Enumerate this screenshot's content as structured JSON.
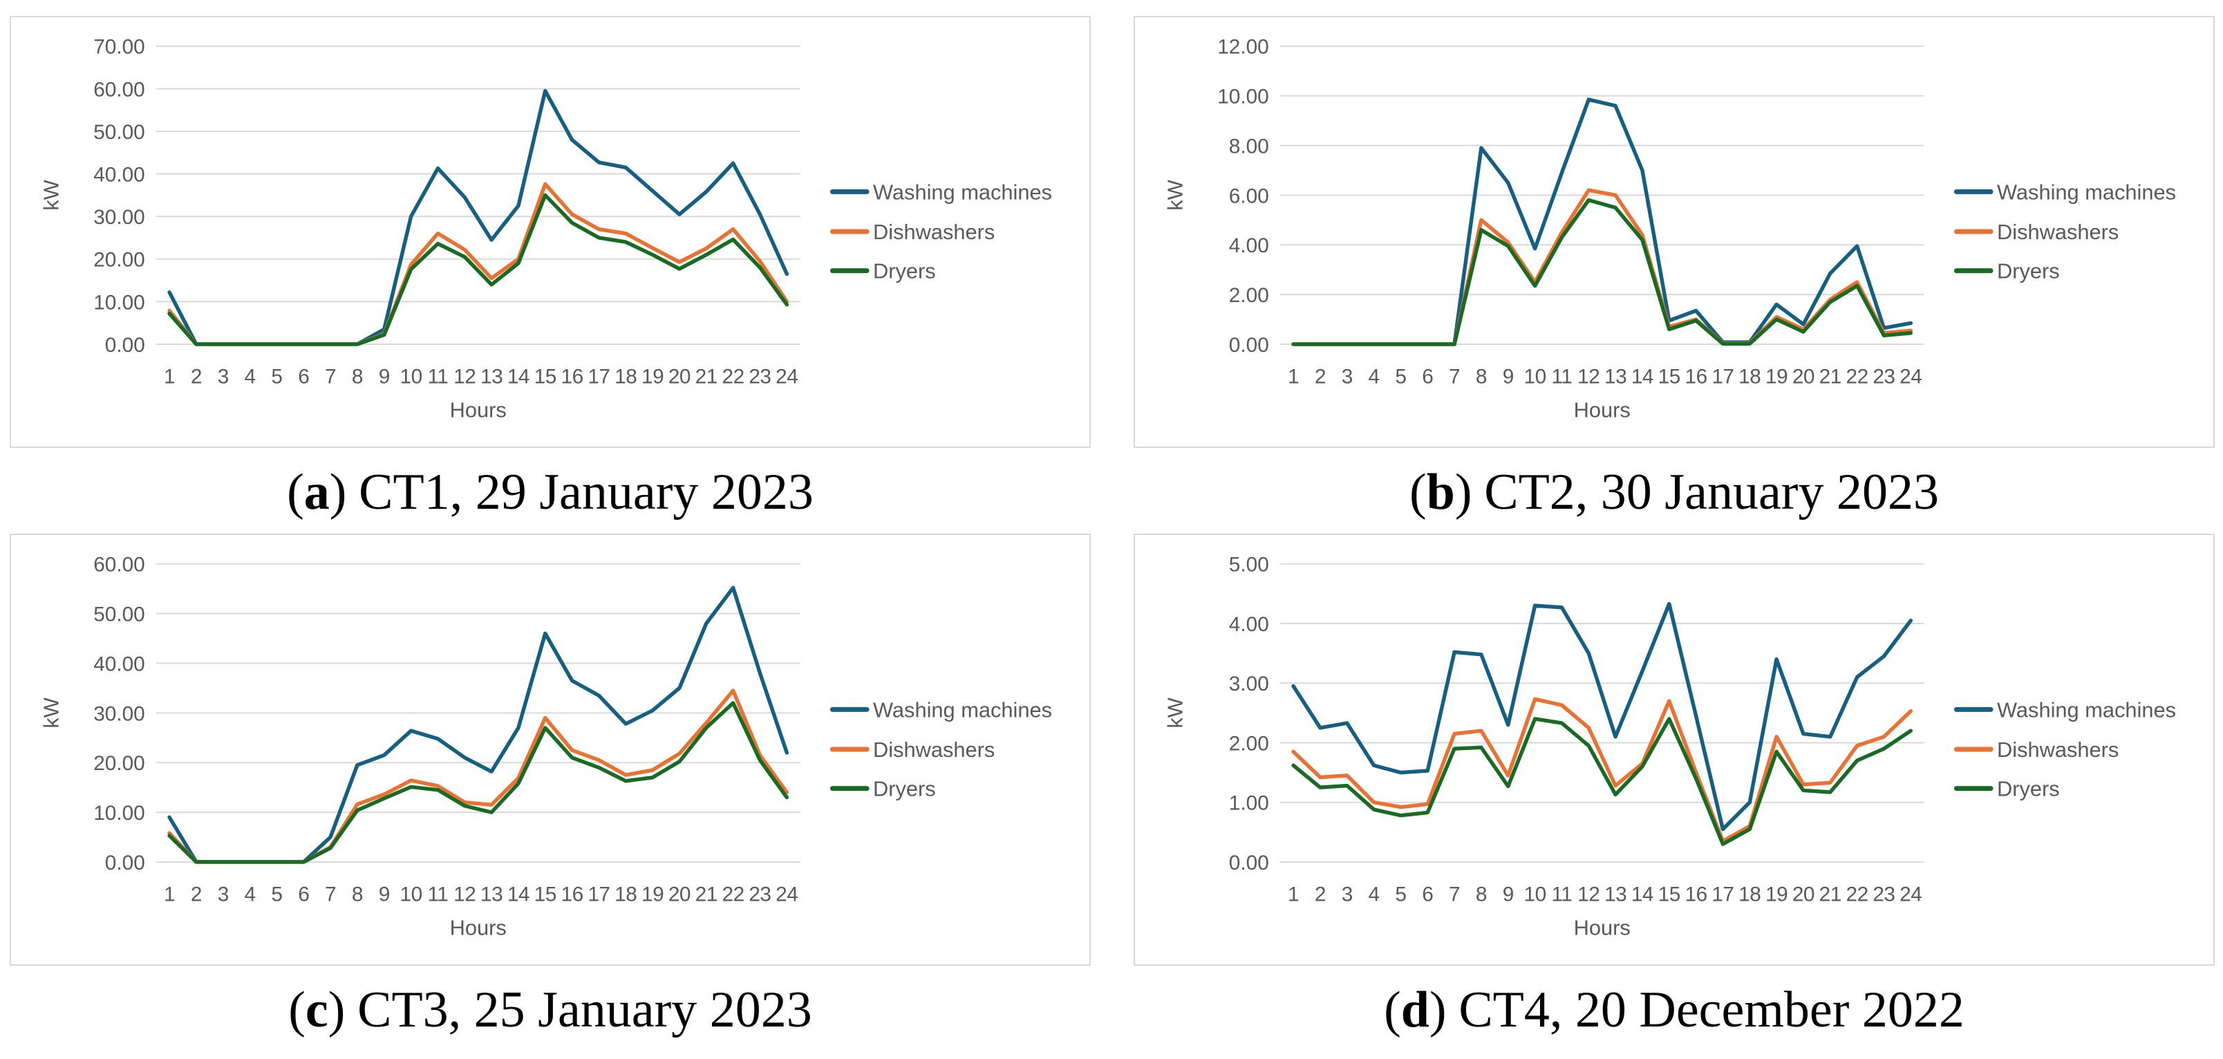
{
  "series_names": [
    "Washing machines",
    "Dishwashers",
    "Dryers"
  ],
  "colors": {
    "washing_machines": "#156082",
    "dishwashers": "#E97132",
    "dryers": "#196B24",
    "gridline": "#D9D9D9",
    "box_border": "#D9D9D9",
    "axis_text": "#595959",
    "caption_text": "#000000"
  },
  "chart_data": [
    {
      "id": "a",
      "type": "line",
      "caption": {
        "open": "(",
        "letter": "a",
        "close": ")",
        "text": "CT1, 29 January 2023"
      },
      "ylabel": "kW",
      "xlabel": "Hours",
      "ylim": [
        0,
        70
      ],
      "ytick_step": 10,
      "ytick_format_decimals": 2,
      "grid": true,
      "legend_position": "right",
      "categories": [
        1,
        2,
        3,
        4,
        5,
        6,
        7,
        8,
        9,
        10,
        11,
        12,
        13,
        14,
        15,
        16,
        17,
        18,
        19,
        20,
        21,
        22,
        23,
        24
      ],
      "series": [
        {
          "name": "Washing machines",
          "color": "#156082",
          "values": [
            12.2,
            0,
            0,
            0,
            0,
            0,
            0,
            0,
            3.5,
            30,
            41.3,
            34.5,
            24.5,
            32.5,
            59.5,
            48,
            42.7,
            41.5,
            36,
            30.5,
            35.8,
            42.5,
            30.5,
            16.5
          ]
        },
        {
          "name": "Dishwashers",
          "color": "#E97132",
          "values": [
            7.9,
            0,
            0,
            0,
            0,
            0,
            0,
            0,
            2.4,
            18.7,
            26,
            22.2,
            15.5,
            20,
            37.6,
            30.5,
            27,
            26,
            22.6,
            19.3,
            22.5,
            27,
            19.5,
            10
          ]
        },
        {
          "name": "Dryers",
          "color": "#196B24",
          "values": [
            7.2,
            0,
            0,
            0,
            0,
            0,
            0,
            0,
            2.2,
            17.6,
            23.6,
            20.5,
            14,
            19,
            35,
            28.5,
            25,
            24,
            21,
            17.7,
            21,
            24.6,
            18,
            9.3
          ]
        }
      ]
    },
    {
      "id": "b",
      "type": "line",
      "caption": {
        "open": "(",
        "letter": "b",
        "close": ")",
        "text": "CT2, 30 January 2023"
      },
      "ylabel": "kW",
      "xlabel": "Hours",
      "ylim": [
        0,
        12
      ],
      "ytick_step": 2,
      "ytick_format_decimals": 2,
      "grid": true,
      "legend_position": "right",
      "categories": [
        1,
        2,
        3,
        4,
        5,
        6,
        7,
        8,
        9,
        10,
        11,
        12,
        13,
        14,
        15,
        16,
        17,
        18,
        19,
        20,
        21,
        22,
        23,
        24
      ],
      "series": [
        {
          "name": "Washing machines",
          "color": "#156082",
          "values": [
            0,
            0,
            0,
            0,
            0,
            0,
            0,
            7.9,
            6.5,
            3.85,
            6.9,
            9.85,
            9.6,
            7.0,
            0.95,
            1.35,
            0.08,
            0.08,
            1.6,
            0.8,
            2.85,
            3.95,
            0.65,
            0.85
          ]
        },
        {
          "name": "Dishwashers",
          "color": "#E97132",
          "values": [
            0,
            0,
            0,
            0,
            0,
            0,
            0,
            5.0,
            4.1,
            2.5,
            4.5,
            6.2,
            6.0,
            4.4,
            0.7,
            1.0,
            0.04,
            0.04,
            1.1,
            0.6,
            1.8,
            2.5,
            0.45,
            0.55
          ]
        },
        {
          "name": "Dryers",
          "color": "#196B24",
          "values": [
            0,
            0,
            0,
            0,
            0,
            0,
            0,
            4.6,
            3.95,
            2.35,
            4.3,
            5.8,
            5.5,
            4.2,
            0.6,
            0.95,
            0.02,
            0.02,
            1.0,
            0.5,
            1.7,
            2.35,
            0.35,
            0.45
          ]
        }
      ]
    },
    {
      "id": "c",
      "type": "line",
      "caption": {
        "open": "(",
        "letter": "c",
        "close": ")",
        "text": "CT3, 25 January 2023"
      },
      "ylabel": "kW",
      "xlabel": "Hours",
      "ylim": [
        0,
        60
      ],
      "ytick_step": 10,
      "ytick_format_decimals": 2,
      "grid": true,
      "legend_position": "right",
      "categories": [
        1,
        2,
        3,
        4,
        5,
        6,
        7,
        8,
        9,
        10,
        11,
        12,
        13,
        14,
        15,
        16,
        17,
        18,
        19,
        20,
        21,
        22,
        23,
        24
      ],
      "series": [
        {
          "name": "Washing machines",
          "color": "#156082",
          "values": [
            9,
            0,
            0,
            0,
            0,
            0,
            5,
            19.5,
            21.5,
            26.4,
            24.8,
            21,
            18.2,
            27,
            46,
            36.5,
            33.5,
            27.8,
            30.5,
            35,
            48,
            55.2,
            38,
            22
          ]
        },
        {
          "name": "Dishwashers",
          "color": "#E97132",
          "values": [
            5.8,
            0,
            0,
            0,
            0,
            0,
            3,
            11.6,
            13.6,
            16.4,
            15.3,
            12,
            11.5,
            16.9,
            29,
            22.5,
            20.5,
            17.5,
            18.5,
            21.8,
            28,
            34.5,
            21.5,
            14
          ]
        },
        {
          "name": "Dryers",
          "color": "#196B24",
          "values": [
            5.3,
            0,
            0,
            0,
            0,
            0,
            2.8,
            10.4,
            12.8,
            15.1,
            14.5,
            11.3,
            10,
            15.8,
            27,
            21,
            19,
            16.3,
            17,
            20.2,
            27,
            32,
            20.5,
            13
          ]
        }
      ]
    },
    {
      "id": "d",
      "type": "line",
      "caption": {
        "open": "(",
        "letter": "d",
        "close": ")",
        "text": "CT4, 20 December 2022"
      },
      "ylabel": "kW",
      "xlabel": "Hours",
      "ylim": [
        0,
        5
      ],
      "ytick_step": 1,
      "ytick_format_decimals": 2,
      "grid": true,
      "legend_position": "right",
      "categories": [
        1,
        2,
        3,
        4,
        5,
        6,
        7,
        8,
        9,
        10,
        11,
        12,
        13,
        14,
        15,
        16,
        17,
        18,
        19,
        20,
        21,
        22,
        23,
        24
      ],
      "series": [
        {
          "name": "Washing machines",
          "color": "#156082",
          "values": [
            2.95,
            2.25,
            2.33,
            1.62,
            1.5,
            1.53,
            3.52,
            3.48,
            2.3,
            4.3,
            4.27,
            3.5,
            2.1,
            3.2,
            4.33,
            2.45,
            0.55,
            1.0,
            3.4,
            2.15,
            2.1,
            3.1,
            3.45,
            4.05
          ]
        },
        {
          "name": "Dishwashers",
          "color": "#E97132",
          "values": [
            1.85,
            1.42,
            1.45,
            1.0,
            0.92,
            0.97,
            2.15,
            2.2,
            1.45,
            2.73,
            2.63,
            2.25,
            1.28,
            1.65,
            2.7,
            1.5,
            0.35,
            0.6,
            2.1,
            1.3,
            1.33,
            1.95,
            2.1,
            2.53
          ]
        },
        {
          "name": "Dryers",
          "color": "#196B24",
          "values": [
            1.62,
            1.25,
            1.28,
            0.88,
            0.78,
            0.83,
            1.9,
            1.92,
            1.27,
            2.4,
            2.33,
            1.95,
            1.13,
            1.6,
            2.4,
            1.4,
            0.3,
            0.55,
            1.85,
            1.2,
            1.17,
            1.7,
            1.9,
            2.2
          ]
        }
      ]
    }
  ]
}
